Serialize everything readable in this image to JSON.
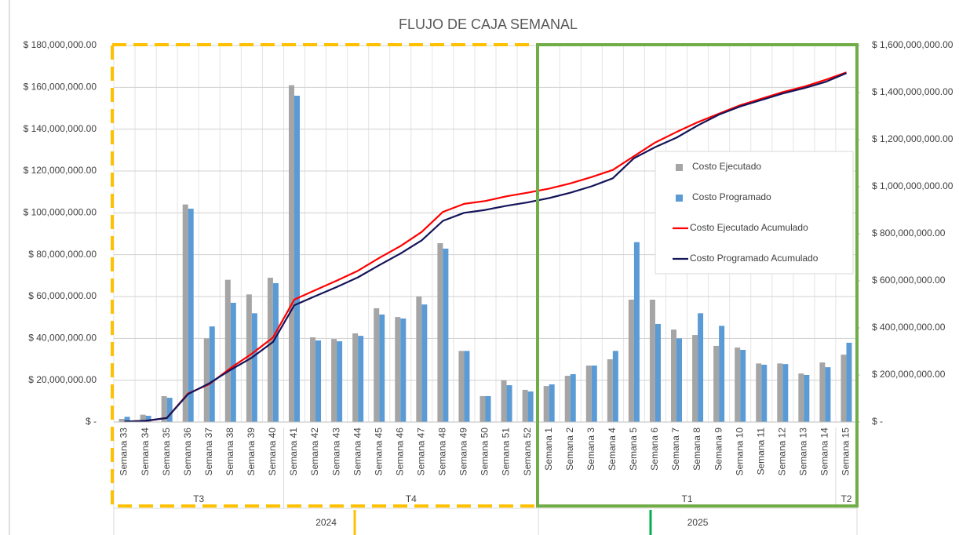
{
  "chart_data": {
    "type": "combo",
    "title": "FLUJO DE CAJA SEMANAL",
    "categories": [
      "Semana 33",
      "Semana 34",
      "Semana 35",
      "Semana 36",
      "Semana 37",
      "Semana 38",
      "Semana 39",
      "Semana 40",
      "Semana 41",
      "Semana 42",
      "Semana 43",
      "Semana 44",
      "Semana 45",
      "Semana 46",
      "Semana 47",
      "Semana 48",
      "Semana 49",
      "Semana 50",
      "Semana 51",
      "Semana 52",
      "Semana 1",
      "Semana 2",
      "Semana 3",
      "Semana 4",
      "Semana 5",
      "Semana 6",
      "Semana 7",
      "Semana 8",
      "Semana 9",
      "Semana 10",
      "Semana 11",
      "Semana 12",
      "Semana 13",
      "Semana 14",
      "Semana 15"
    ],
    "quarters": [
      {
        "label": "T3",
        "weeks": 8
      },
      {
        "label": "T4",
        "weeks": 12
      },
      {
        "label": "T1",
        "weeks": 14
      },
      {
        "label": "T2",
        "weeks": 1
      }
    ],
    "years": [
      {
        "label": "2024",
        "weeks": 20
      },
      {
        "label": "2025",
        "weeks": 15
      }
    ],
    "series": [
      {
        "name": "Costo Ejecutado",
        "type": "bar",
        "axis": "y",
        "color": "#a5a5a5",
        "values": [
          1500000,
          3500000,
          12400000,
          104000000,
          40000000,
          68000000,
          61000000,
          69000000,
          161000000,
          40500000,
          39700000,
          42400000,
          54400000,
          50200000,
          60000000,
          85500000,
          34000000,
          12400000,
          19900000,
          15400000,
          17200000,
          22100000,
          27000000,
          30000000,
          58500000,
          58500000,
          44200000,
          41600000,
          36400000,
          35600000,
          28000000,
          28000000,
          23200000,
          28500000,
          32200000
        ]
      },
      {
        "name": "Costo Programado",
        "type": "bar",
        "axis": "y",
        "color": "#5b9bd5",
        "values": [
          2500000,
          3000000,
          11600000,
          102000000,
          45700000,
          57000000,
          52000000,
          66400000,
          156000000,
          39000000,
          38600000,
          41200000,
          51400000,
          49500000,
          56200000,
          82900000,
          34000000,
          12400000,
          17600000,
          14600000,
          18000000,
          22900000,
          27000000,
          34000000,
          86000000,
          46900000,
          40000000,
          52000000,
          46000000,
          34500000,
          27400000,
          27700000,
          22500000,
          26200000,
          37900000
        ]
      },
      {
        "name": "Costo Ejecutado Acumulado",
        "type": "line",
        "axis": "y2",
        "color": "#ff0000",
        "values": [
          1500000,
          5000000,
          17400000,
          121400000,
          161400000,
          229400000,
          290400000,
          359400000,
          520400000,
          560900000,
          600600000,
          643000000,
          697400000,
          747600000,
          807600000,
          893100000,
          927100000,
          939500000,
          959400000,
          974800000,
          992000000,
          1014100000,
          1041100000,
          1071100000,
          1129600000,
          1188100000,
          1232300000,
          1273900000,
          1310300000,
          1345900000,
          1373900000,
          1401900000,
          1425100000,
          1453600000,
          1485800000
        ]
      },
      {
        "name": "Costo Programado Acumulado",
        "type": "line",
        "axis": "y2",
        "color": "#14145a",
        "values": [
          2500000,
          5500000,
          17100000,
          119100000,
          164800000,
          221800000,
          273800000,
          340200000,
          496200000,
          535200000,
          573800000,
          615000000,
          666400000,
          715900000,
          772100000,
          855000000,
          889000000,
          901400000,
          919000000,
          933600000,
          951600000,
          974500000,
          1001500000,
          1035500000,
          1121500000,
          1168400000,
          1208400000,
          1260400000,
          1306400000,
          1340900000,
          1368300000,
          1396000000,
          1418500000,
          1444700000,
          1482600000
        ]
      }
    ],
    "ylim": [
      0,
      180000000
    ],
    "yticks": [
      {
        "value": 0,
        "label": "$ -"
      },
      {
        "value": 20000000,
        "label": "$ 20,000,000.00"
      },
      {
        "value": 40000000,
        "label": "$ 40,000,000.00"
      },
      {
        "value": 60000000,
        "label": "$ 60,000,000.00"
      },
      {
        "value": 80000000,
        "label": "$ 80,000,000.00"
      },
      {
        "value": 100000000,
        "label": "$ 100,000,000.00"
      },
      {
        "value": 120000000,
        "label": "$ 120,000,000.00"
      },
      {
        "value": 140000000,
        "label": "$ 140,000,000.00"
      },
      {
        "value": 160000000,
        "label": "$ 160,000,000.00"
      },
      {
        "value": 180000000,
        "label": "$ 180,000,000.00"
      }
    ],
    "y2lim": [
      0,
      1600000000
    ],
    "y2ticks": [
      {
        "value": 0,
        "label": "$ -"
      },
      {
        "value": 200000000,
        "label": "$ 200,000,000.00"
      },
      {
        "value": 400000000,
        "label": "$ 400,000,000.00"
      },
      {
        "value": 600000000,
        "label": "$ 600,000,000.00"
      },
      {
        "value": 800000000,
        "label": "$ 800,000,000.00"
      },
      {
        "value": 1000000000,
        "label": "$ 1,000,000,000.00"
      },
      {
        "value": 1200000000,
        "label": "$ 1,200,000,000.00"
      },
      {
        "value": 1400000000,
        "label": "$ 1,400,000,000.00"
      },
      {
        "value": 1600000000,
        "label": "$ 1,600,000,000.00"
      }
    ],
    "grid": true
  }
}
